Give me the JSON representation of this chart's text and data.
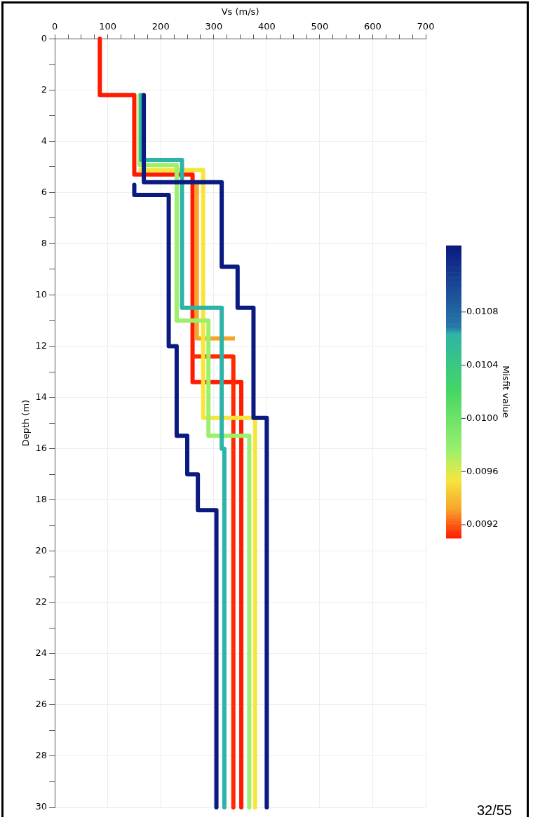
{
  "chart_data": {
    "type": "line",
    "xlabel": "Vs (m/s)",
    "ylabel": "Depth (m)",
    "clabel": "Misfit value",
    "xlim": [
      0,
      700
    ],
    "ylim": [
      30,
      0
    ],
    "xticks": [
      0,
      {
        "value": 25,
        "label": null
      },
      {
        "value": 50,
        "label": null
      },
      {
        "value": 75,
        "label": null
      },
      100,
      {
        "value": 125,
        "label": null
      },
      {
        "value": 150,
        "label": null
      },
      {
        "value": 175,
        "label": null
      },
      200,
      {
        "value": 225,
        "label": null
      },
      {
        "value": 250,
        "label": null
      },
      {
        "value": 275,
        "label": null
      },
      300,
      {
        "value": 325,
        "label": null
      },
      {
        "value": 350,
        "label": null
      },
      {
        "value": 375,
        "label": null
      },
      400,
      {
        "value": 425,
        "label": null
      },
      {
        "value": 450,
        "label": null
      },
      {
        "value": 475,
        "label": null
      },
      500,
      {
        "value": 525,
        "label": null
      },
      {
        "value": 550,
        "label": null
      },
      {
        "value": 575,
        "label": null
      },
      600,
      {
        "value": 625,
        "label": null
      },
      {
        "value": 650,
        "label": null
      },
      {
        "value": 675,
        "label": null
      },
      700
    ],
    "yticks": [
      0,
      {
        "value": 1,
        "label": null
      },
      2,
      {
        "value": 3,
        "label": null
      },
      4,
      {
        "value": 5,
        "label": null
      },
      6,
      {
        "value": 7,
        "label": null
      },
      8,
      {
        "value": 9,
        "label": null
      },
      10,
      {
        "value": 11,
        "label": null
      },
      12,
      {
        "value": 13,
        "label": null
      },
      14,
      {
        "value": 15,
        "label": null
      },
      16,
      {
        "value": 17,
        "label": null
      },
      18,
      {
        "value": 19,
        "label": null
      },
      20,
      {
        "value": 21,
        "label": null
      },
      22,
      {
        "value": 23,
        "label": null
      },
      24,
      {
        "value": 25,
        "label": null
      },
      26,
      {
        "value": 27,
        "label": null
      },
      28,
      {
        "value": 29,
        "label": null
      },
      30
    ],
    "clim": [
      0.0091,
      0.0113
    ],
    "cticks": [
      {
        "value": 0.0092,
        "label": "0.0092"
      },
      {
        "value": 0.0096,
        "label": "0.0096"
      },
      {
        "value": 0.01,
        "label": "0.0100"
      },
      {
        "value": 0.0104,
        "label": "0.0104"
      },
      {
        "value": 0.0108,
        "label": "0.0108"
      }
    ],
    "grid": true,
    "legend": false,
    "marker": "none",
    "line_style": "solid",
    "series": [
      {
        "color": "#0b1a80",
        "x": [
          168,
          168,
          315,
          315,
          345,
          345,
          375,
          375,
          400,
          400
        ],
        "values": [
          2.2,
          5.6,
          5.6,
          8.9,
          8.9,
          10.5,
          10.5,
          14.8,
          14.8,
          30
        ]
      },
      {
        "color": "#0b1a80",
        "x": [
          150,
          150,
          215,
          215,
          230,
          230,
          250,
          250,
          270,
          270,
          305,
          305
        ],
        "values": [
          5.7,
          6.1,
          6.1,
          12,
          12,
          15.5,
          15.5,
          17,
          17,
          18.4,
          18.4,
          30
        ]
      },
      {
        "color": "#2db4a6",
        "x": [
          163,
          163,
          240,
          240,
          315,
          315,
          320,
          320
        ],
        "values": [
          2.2,
          4.73,
          4.73,
          10.5,
          10.5,
          16,
          16,
          30
        ]
      },
      {
        "color": "#9cf06c",
        "x": [
          160,
          160,
          230,
          230,
          290,
          290,
          367,
          367
        ],
        "values": [
          2.2,
          4.93,
          4.93,
          11,
          11,
          15.5,
          15.5,
          30
        ]
      },
      {
        "color": "#f6e63c",
        "x": [
          158,
          280,
          280,
          378,
          378
        ],
        "values": [
          5.12,
          5.12,
          14.8,
          14.8,
          30
        ]
      },
      {
        "color": "#f7a52a",
        "x": [
          268,
          268,
          340
        ],
        "values": [
          5.6,
          11.7,
          11.7
        ]
      },
      {
        "color": "#ff2a00",
        "x": [
          260,
          337,
          337
        ],
        "values": [
          12.4,
          12.4,
          30
        ]
      },
      {
        "color": "#ff1a00",
        "x": [
          85,
          85,
          150,
          150,
          260,
          260,
          352,
          352
        ],
        "values": [
          0,
          2.2,
          2.2,
          5.3,
          5.3,
          13.4,
          13.4,
          30
        ]
      }
    ],
    "annotations": [
      "32/55"
    ]
  }
}
